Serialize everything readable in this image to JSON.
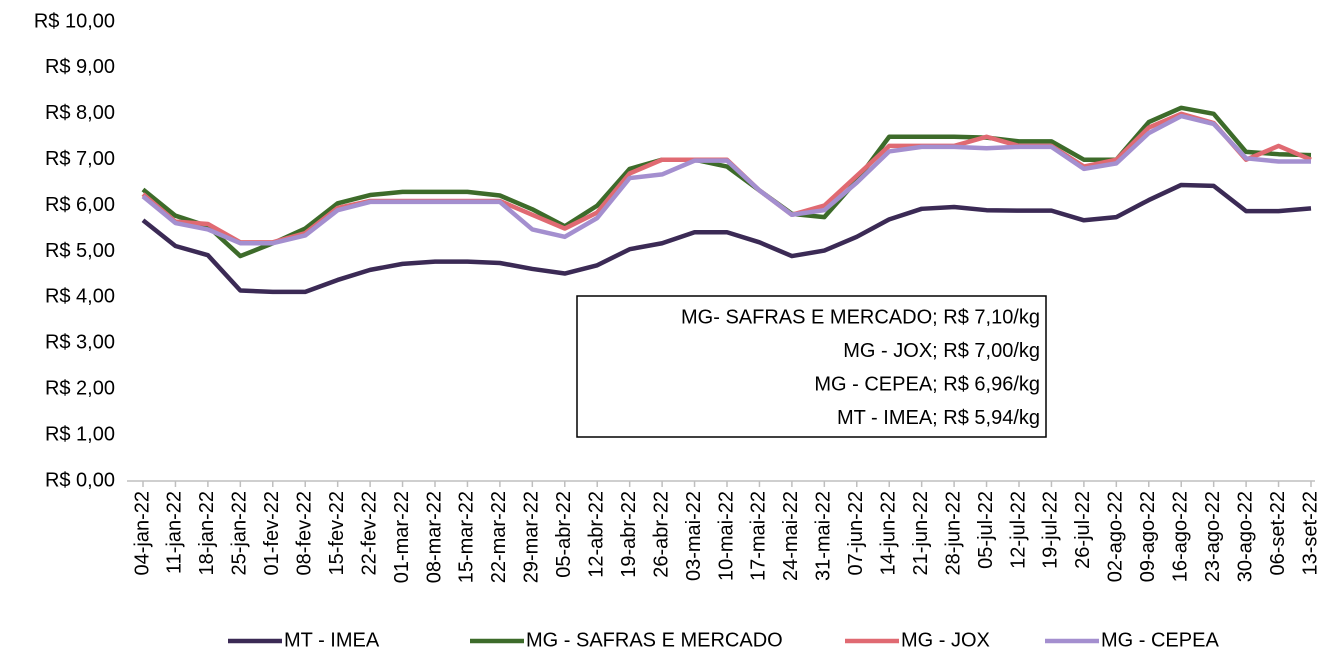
{
  "chart_data": {
    "type": "line",
    "categories": [
      "04-jan-22",
      "11-jan-22",
      "18-jan-22",
      "25-jan-22",
      "01-fev-22",
      "08-fev-22",
      "15-fev-22",
      "22-fev-22",
      "01-mar-22",
      "08-mar-22",
      "15-mar-22",
      "22-mar-22",
      "29-mar-22",
      "05-abr-22",
      "12-abr-22",
      "19-abr-22",
      "26-abr-22",
      "03-mai-22",
      "10-mai-22",
      "17-mai-22",
      "24-mai-22",
      "31-mai-22",
      "07-jun-22",
      "14-jun-22",
      "21-jun-22",
      "28-jun-22",
      "05-jul-22",
      "12-jul-22",
      "19-jul-22",
      "26-jul-22",
      "02-ago-22",
      "09-ago-22",
      "16-ago-22",
      "23-ago-22",
      "30-ago-22",
      "06-set-22",
      "13-set-22"
    ],
    "series": [
      {
        "name": "MT - IMEA",
        "color": "#3b2a55",
        "values": [
          5.68,
          5.12,
          4.92,
          4.15,
          4.12,
          4.12,
          4.38,
          4.6,
          4.73,
          4.78,
          4.78,
          4.75,
          4.62,
          4.52,
          4.7,
          5.05,
          5.18,
          5.42,
          5.42,
          5.2,
          4.9,
          5.02,
          5.32,
          5.7,
          5.93,
          5.97,
          5.9,
          5.89,
          5.89,
          5.68,
          5.75,
          6.12,
          6.45,
          6.43,
          5.88,
          5.88,
          5.94
        ]
      },
      {
        "name": "MG - SAFRAS E MERCADO",
        "color": "#3d6b2a",
        "values": [
          6.35,
          5.78,
          5.55,
          4.9,
          5.18,
          5.5,
          6.05,
          6.23,
          6.3,
          6.3,
          6.3,
          6.22,
          5.92,
          5.55,
          6.0,
          6.8,
          7.0,
          7.0,
          6.85,
          6.33,
          5.82,
          5.75,
          6.55,
          7.5,
          7.5,
          7.5,
          7.48,
          7.4,
          7.4,
          7.0,
          7.0,
          7.82,
          8.13,
          8.0,
          7.17,
          7.12,
          7.1
        ]
      },
      {
        "name": "MG - JOX",
        "color": "#e06a72",
        "values": [
          6.25,
          5.65,
          5.6,
          5.2,
          5.2,
          5.4,
          5.95,
          6.1,
          6.1,
          6.1,
          6.1,
          6.1,
          5.8,
          5.5,
          5.85,
          6.7,
          7.0,
          7.0,
          7.0,
          6.33,
          5.8,
          6.0,
          6.65,
          7.3,
          7.3,
          7.3,
          7.5,
          7.3,
          7.3,
          6.85,
          7.0,
          7.7,
          8.0,
          7.8,
          7.0,
          7.3,
          7.0
        ]
      },
      {
        "name": "MG - CEPEA",
        "color": "#a48fcf",
        "values": [
          6.2,
          5.62,
          5.48,
          5.18,
          5.18,
          5.35,
          5.9,
          6.08,
          6.08,
          6.08,
          6.08,
          6.08,
          5.48,
          5.32,
          5.73,
          6.6,
          6.68,
          6.98,
          6.98,
          6.33,
          5.8,
          5.9,
          6.5,
          7.18,
          7.28,
          7.28,
          7.25,
          7.28,
          7.28,
          6.8,
          6.92,
          7.58,
          7.95,
          7.78,
          7.03,
          6.96,
          6.96
        ]
      }
    ],
    "ylim": [
      0,
      10
    ],
    "yticks": [
      {
        "value": 0,
        "label": "R$ 0,00"
      },
      {
        "value": 1,
        "label": "R$ 1,00"
      },
      {
        "value": 2,
        "label": "R$ 2,00"
      },
      {
        "value": 3,
        "label": "R$ 3,00"
      },
      {
        "value": 4,
        "label": "R$ 4,00"
      },
      {
        "value": 5,
        "label": "R$ 5,00"
      },
      {
        "value": 6,
        "label": "R$ 6,00"
      },
      {
        "value": 7,
        "label": "R$ 7,00"
      },
      {
        "value": 8,
        "label": "R$ 8,00"
      },
      {
        "value": 9,
        "label": "R$ 9,00"
      },
      {
        "value": 10,
        "label": "R$ 10,00"
      }
    ],
    "annotations": [
      "MG- SAFRAS E MERCADO; R$ 7,10/kg",
      "MG - JOX; R$ 7,00/kg",
      "MG - CEPEA; R$ 6,96/kg",
      "MT - IMEA; R$ 5,94/kg"
    ],
    "legend": "bottom"
  }
}
